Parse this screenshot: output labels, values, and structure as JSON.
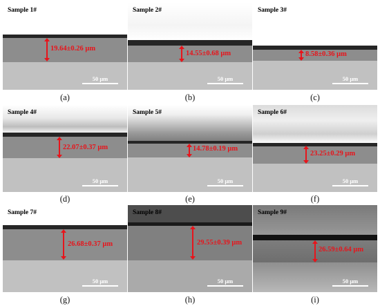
{
  "panels": [
    {
      "sample": "Sample 1#",
      "measurement": "19.64±0.26 μm",
      "caption": "(a)",
      "scale": "50 μm"
    },
    {
      "sample": "Sample 2#",
      "measurement": "14.55±0.68 μm",
      "caption": "(b)",
      "scale": "50 μm"
    },
    {
      "sample": "Sample 3#",
      "measurement": "8.58±0.36 μm",
      "caption": "(c)",
      "scale": "50 μm"
    },
    {
      "sample": "Sample 4#",
      "measurement": "22.07±0.37 μm",
      "caption": "(d)",
      "scale": "50 μm"
    },
    {
      "sample": "Sample 5#",
      "measurement": "14.78±0.19 μm",
      "caption": "(e)",
      "scale": "50 μm"
    },
    {
      "sample": "Sample 6#",
      "measurement": "23.25±0.29 μm",
      "caption": "(f)",
      "scale": "50 μm"
    },
    {
      "sample": "Sample 7#",
      "measurement": "26.68±0.37 μm",
      "caption": "(g)",
      "scale": "50 μm"
    },
    {
      "sample": "Sample 8#",
      "measurement": "29.55±0.39 μm",
      "caption": "(h)",
      "scale": "50 μm"
    },
    {
      "sample": "Sample 9#",
      "measurement": "26.59±0.64 μm",
      "caption": "(i)",
      "scale": "50 μm"
    }
  ],
  "colors": {
    "annotation": "#e8141b",
    "coating": "#8d8d8d",
    "substrate": "#c1c1c1",
    "film": "#262626"
  }
}
